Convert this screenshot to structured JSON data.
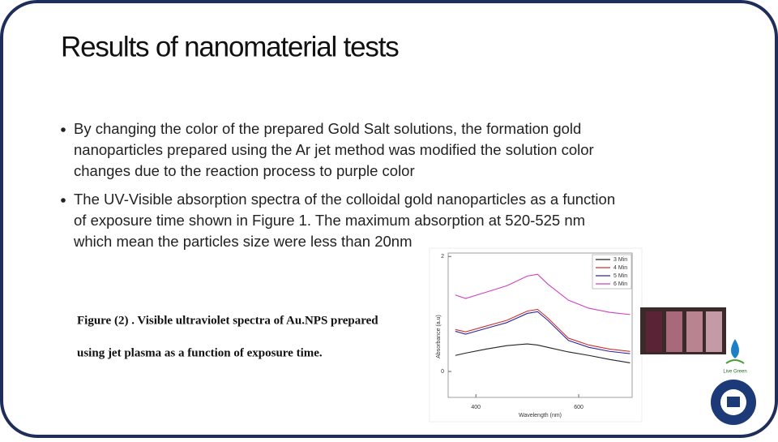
{
  "header": {
    "title": "Results of nanomaterial tests"
  },
  "bullets": [
    [
      "By changing the color of the prepared Gold Salt  solutions, the formation    gold",
      "nanoparticles prepared using the Ar jet method was modified the solution color",
      "changes due to the reaction process to purple color"
    ],
    [
      "The UV-Visible absorption spectra of the colloidal gold nanoparticles as a function",
      "of exposure time shown in Figure 1. The maximum absorption at 520-525 nm",
      "which mean the particles size were less than 20nm"
    ]
  ],
  "figure": {
    "caption": [
      "Figure (2) . Visible ultraviolet spectra of Au.NPS prepared",
      "using jet plasma as a function of exposure time."
    ],
    "xlabel": "Wavelength (nm)",
    "ylabel": "Absorbance (a.u)",
    "xlim": [
      346,
      704
    ],
    "ylim": [
      -0.45,
      2.06
    ],
    "xticks": [
      400,
      600
    ],
    "yticks": [
      0,
      2
    ],
    "x": [
      360,
      380,
      420,
      460,
      500,
      520,
      540,
      580,
      620,
      660,
      700
    ],
    "series": [
      {
        "name": "3 Min",
        "color": "#222222",
        "values": [
          0.28,
          0.32,
          0.39,
          0.45,
          0.48,
          0.46,
          0.42,
          0.34,
          0.28,
          0.21,
          0.15
        ]
      },
      {
        "name": "4 Min",
        "color": "#d03030",
        "values": [
          0.73,
          0.69,
          0.79,
          0.89,
          1.05,
          1.08,
          0.93,
          0.58,
          0.46,
          0.39,
          0.35
        ]
      },
      {
        "name": "5 Min",
        "color": "#2a2aa0",
        "values": [
          0.7,
          0.65,
          0.75,
          0.85,
          1.01,
          1.04,
          0.89,
          0.54,
          0.42,
          0.35,
          0.31
        ]
      },
      {
        "name": "6 Min",
        "color": "#d040c0",
        "values": [
          1.33,
          1.27,
          1.38,
          1.49,
          1.66,
          1.69,
          1.52,
          1.24,
          1.1,
          1.03,
          0.99
        ]
      }
    ]
  },
  "logos": [
    "Live Green"
  ]
}
